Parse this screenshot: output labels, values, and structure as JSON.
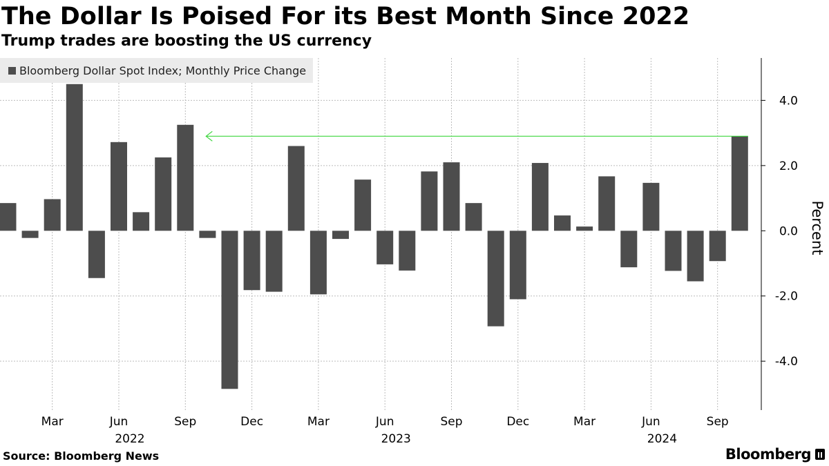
{
  "header": {
    "title": "The Dollar Is Poised For its Best Month Since 2022",
    "subtitle": "Trump trades are boosting the US currency"
  },
  "footer": {
    "source": "Source: Bloomberg News",
    "brand": "Bloomberg"
  },
  "colors": {
    "bar": "#4d4d4d",
    "arrow": "#3cd63c",
    "grid": "#bbbbbb",
    "axis": "#000000",
    "legend_bg": "#ebebeb"
  },
  "chart_data": {
    "type": "bar",
    "title": "The Dollar Is Poised For its Best Month Since 2022",
    "subtitle": "Trump trades are boosting the US currency",
    "legend": {
      "position": "top-left",
      "entries": [
        "Bloomberg Dollar Spot Index; Monthly Price Change"
      ]
    },
    "ylabel": "Percent",
    "y_axis_side": "right",
    "ylim": [
      -5.5,
      5.3
    ],
    "yticks": [
      4.0,
      2.0,
      0.0,
      -2.0,
      -4.0
    ],
    "ytick_labels": [
      "4.0",
      "2.0",
      "0.0",
      "-2.0",
      "-4.0"
    ],
    "grid": true,
    "categories": [
      "2022-01",
      "2022-02",
      "2022-03",
      "2022-04",
      "2022-05",
      "2022-06",
      "2022-07",
      "2022-08",
      "2022-09",
      "2022-10",
      "2022-11",
      "2022-12",
      "2023-01",
      "2023-02",
      "2023-03",
      "2023-04",
      "2023-05",
      "2023-06",
      "2023-07",
      "2023-08",
      "2023-09",
      "2023-10",
      "2023-11",
      "2023-12",
      "2024-01",
      "2024-02",
      "2024-03",
      "2024-04",
      "2024-05",
      "2024-06",
      "2024-07",
      "2024-08",
      "2024-09",
      "2024-10"
    ],
    "series": [
      {
        "name": "Bloomberg Dollar Spot Index; Monthly Price Change",
        "values": [
          0.85,
          -0.22,
          0.97,
          4.5,
          -1.45,
          2.72,
          0.57,
          2.25,
          3.25,
          -0.22,
          -4.85,
          -1.82,
          -1.87,
          2.6,
          -1.95,
          -0.25,
          1.57,
          -1.03,
          -1.22,
          1.82,
          2.1,
          0.85,
          -2.93,
          -2.1,
          2.08,
          0.47,
          0.13,
          1.67,
          -1.12,
          1.47,
          -1.23,
          -1.55,
          -0.93,
          2.9
        ]
      }
    ],
    "x_tick_labels": [
      {
        "category": "2022-03",
        "label": "Mar"
      },
      {
        "category": "2022-06",
        "label": "Jun"
      },
      {
        "category": "2022-09",
        "label": "Sep"
      },
      {
        "category": "2022-12",
        "label": "Dec"
      },
      {
        "category": "2023-03",
        "label": "Mar"
      },
      {
        "category": "2023-06",
        "label": "Jun"
      },
      {
        "category": "2023-09",
        "label": "Sep"
      },
      {
        "category": "2023-12",
        "label": "Dec"
      },
      {
        "category": "2024-03",
        "label": "Mar"
      },
      {
        "category": "2024-06",
        "label": "Jun"
      },
      {
        "category": "2024-09",
        "label": "Sep"
      }
    ],
    "x_year_labels": [
      {
        "category": "2022-06",
        "label": "2022"
      },
      {
        "category": "2023-06",
        "label": "2023"
      },
      {
        "category": "2024-06",
        "label": "2024"
      }
    ],
    "annotations": [
      {
        "type": "arrow",
        "from_category": "2024-10",
        "to_category": "2022-09",
        "y": 2.9
      }
    ]
  }
}
